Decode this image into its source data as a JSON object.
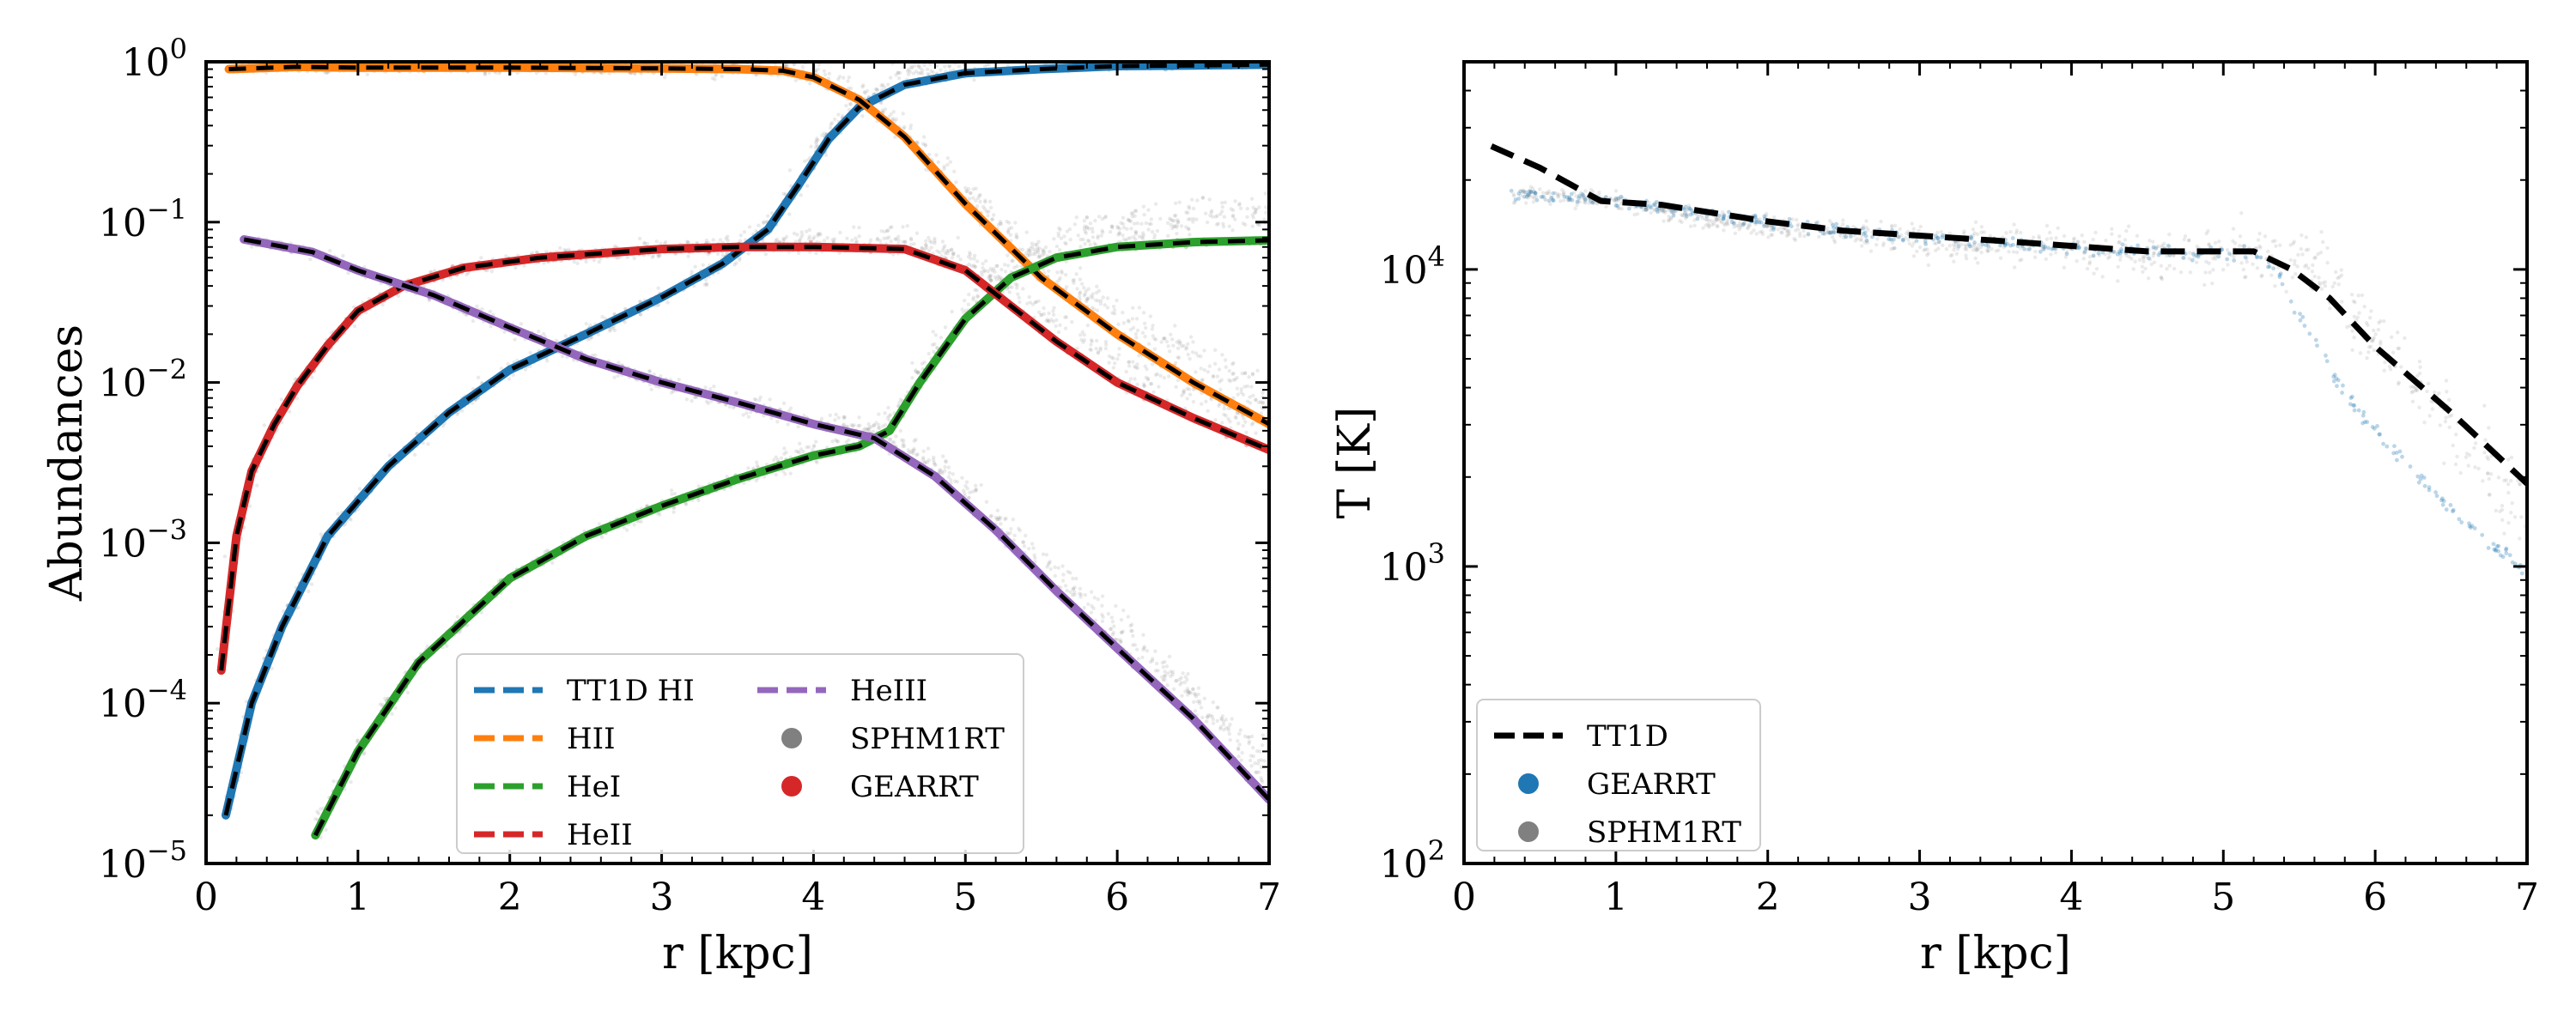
{
  "chart_data": [
    {
      "type": "line",
      "xlabel": "r [kpc]",
      "ylabel": "Abundances",
      "xlim": [
        0,
        7
      ],
      "ylim": [
        1e-05,
        1
      ],
      "yscale": "log",
      "xticks": [
        "0",
        "1",
        "2",
        "3",
        "4",
        "5",
        "6",
        "7"
      ],
      "yticks": [
        {
          "base": "10",
          "exp": "−5"
        },
        {
          "base": "10",
          "exp": "−4"
        },
        {
          "base": "10",
          "exp": "−3"
        },
        {
          "base": "10",
          "exp": "−2"
        },
        {
          "base": "10",
          "exp": "−1"
        },
        {
          "base": "10",
          "exp": "0"
        }
      ],
      "grid": false,
      "legend_position": "lower-right",
      "legend_entries": [
        {
          "label": "TT1D HI",
          "kind": "dash",
          "color": "#1f77b4"
        },
        {
          "label": "HII",
          "kind": "dash",
          "color": "#ff7f0e"
        },
        {
          "label": "HeI",
          "kind": "dash",
          "color": "#2ca02c"
        },
        {
          "label": "HeII",
          "kind": "dash",
          "color": "#d62728"
        },
        {
          "label": "HeIII",
          "kind": "dash",
          "color": "#9467bd"
        },
        {
          "label": "SPHM1RT",
          "kind": "dot",
          "color": "#808080"
        },
        {
          "label": "GEARRT",
          "kind": "dot",
          "color": "#d62728"
        }
      ],
      "series": [
        {
          "key": "HI",
          "color": "#1f77b4",
          "x": [
            0.13,
            0.3,
            0.5,
            0.8,
            1.2,
            1.6,
            2.0,
            2.5,
            3.0,
            3.4,
            3.7,
            3.9,
            4.1,
            4.3,
            4.6,
            5.0,
            5.5,
            6.0,
            6.5,
            7.0
          ],
          "y": [
            2e-05,
            0.0001,
            0.0003,
            0.0011,
            0.003,
            0.0065,
            0.012,
            0.02,
            0.034,
            0.055,
            0.09,
            0.17,
            0.33,
            0.52,
            0.72,
            0.85,
            0.9,
            0.94,
            0.95,
            0.96
          ]
        },
        {
          "key": "HII",
          "color": "#ff7f0e",
          "x": [
            0.15,
            0.6,
            1.0,
            2.0,
            3.0,
            3.5,
            3.8,
            4.0,
            4.3,
            4.6,
            5.0,
            5.5,
            6.0,
            6.5,
            7.0
          ],
          "y": [
            0.9,
            0.93,
            0.92,
            0.92,
            0.91,
            0.9,
            0.88,
            0.8,
            0.58,
            0.34,
            0.13,
            0.045,
            0.02,
            0.01,
            0.0055
          ]
        },
        {
          "key": "HeI",
          "color": "#2ca02c",
          "x": [
            0.72,
            1.0,
            1.4,
            2.0,
            2.5,
            3.0,
            3.5,
            4.0,
            4.3,
            4.5,
            4.7,
            5.0,
            5.3,
            5.6,
            6.0,
            6.5,
            7.0
          ],
          "y": [
            1.5e-05,
            5e-05,
            0.00018,
            0.0006,
            0.0011,
            0.0017,
            0.0025,
            0.0035,
            0.004,
            0.005,
            0.01,
            0.025,
            0.045,
            0.06,
            0.07,
            0.075,
            0.077
          ]
        },
        {
          "key": "HeII",
          "color": "#d62728",
          "x": [
            0.1,
            0.2,
            0.3,
            0.45,
            0.6,
            0.8,
            1.0,
            1.3,
            1.7,
            2.2,
            3.0,
            3.5,
            4.0,
            4.6,
            5.0,
            5.3,
            5.6,
            6.0,
            6.5,
            7.0
          ],
          "y": [
            0.00016,
            0.0011,
            0.0028,
            0.0055,
            0.0095,
            0.017,
            0.028,
            0.04,
            0.052,
            0.06,
            0.068,
            0.07,
            0.07,
            0.068,
            0.05,
            0.03,
            0.018,
            0.01,
            0.006,
            0.0038
          ]
        },
        {
          "key": "HeIII",
          "color": "#9467bd",
          "x": [
            0.25,
            0.7,
            1.0,
            1.5,
            2.0,
            2.5,
            3.0,
            3.5,
            4.0,
            4.4,
            4.8,
            5.2,
            5.6,
            6.0,
            6.5,
            7.0
          ],
          "y": [
            0.078,
            0.065,
            0.05,
            0.035,
            0.022,
            0.014,
            0.01,
            0.0075,
            0.0055,
            0.0045,
            0.0026,
            0.0012,
            0.0005,
            0.00022,
            8e-05,
            2.5e-05
          ]
        }
      ]
    },
    {
      "type": "line",
      "xlabel": "r [kpc]",
      "ylabel": "T [K]",
      "xlim": [
        0,
        7
      ],
      "ylim": [
        100,
        50000
      ],
      "yscale": "log",
      "xticks": [
        "0",
        "1",
        "2",
        "3",
        "4",
        "5",
        "6",
        "7"
      ],
      "yticks": [
        {
          "base": "10",
          "exp": "2"
        },
        {
          "base": "10",
          "exp": "3"
        },
        {
          "base": "10",
          "exp": "4"
        }
      ],
      "grid": false,
      "legend_position": "lower-left",
      "legend_entries": [
        {
          "label": "TT1D",
          "kind": "dash",
          "color": "#000000"
        },
        {
          "label": "GEARRT",
          "kind": "dot",
          "color": "#1f77b4"
        },
        {
          "label": "SPHM1RT",
          "kind": "dot",
          "color": "#808080"
        }
      ],
      "series": [
        {
          "key": "TT1D",
          "color": "#000000",
          "x": [
            0.18,
            0.5,
            0.9,
            1.3,
            2.0,
            2.5,
            3.0,
            3.5,
            4.0,
            4.5,
            5.0,
            5.2,
            5.45,
            5.7,
            6.0,
            6.5,
            7.0
          ],
          "y": [
            26000,
            22000,
            17000,
            16500,
            14500,
            13500,
            13000,
            12500,
            12000,
            11500,
            11500,
            11500,
            10000,
            8000,
            5500,
            3300,
            1900
          ]
        },
        {
          "key": "GEARRT",
          "color": "#1f77b4",
          "x": [
            0.3,
            0.7,
            1.0,
            1.5,
            2.0,
            2.5,
            3.0,
            3.5,
            4.0,
            4.5,
            5.0,
            5.2,
            5.35,
            5.5,
            5.8,
            6.2,
            6.6,
            7.0
          ],
          "y": [
            18000,
            17500,
            17000,
            15500,
            14500,
            13500,
            12800,
            12200,
            11800,
            11500,
            11300,
            11300,
            10000,
            7000,
            3800,
            2200,
            1400,
            950
          ]
        },
        {
          "key": "SPHM1RT",
          "color": "#808080",
          "x": [
            0.3,
            0.7,
            1.0,
            1.5,
            2.0,
            2.5,
            3.0,
            3.5,
            4.0,
            4.5,
            5.0,
            5.3,
            5.5,
            5.7,
            6.0,
            6.5,
            7.0
          ],
          "y": [
            18000,
            17500,
            17000,
            15000,
            14000,
            13200,
            12600,
            12100,
            11700,
            11400,
            11300,
            11300,
            11000,
            9500,
            6000,
            3000,
            1500
          ]
        }
      ]
    }
  ]
}
